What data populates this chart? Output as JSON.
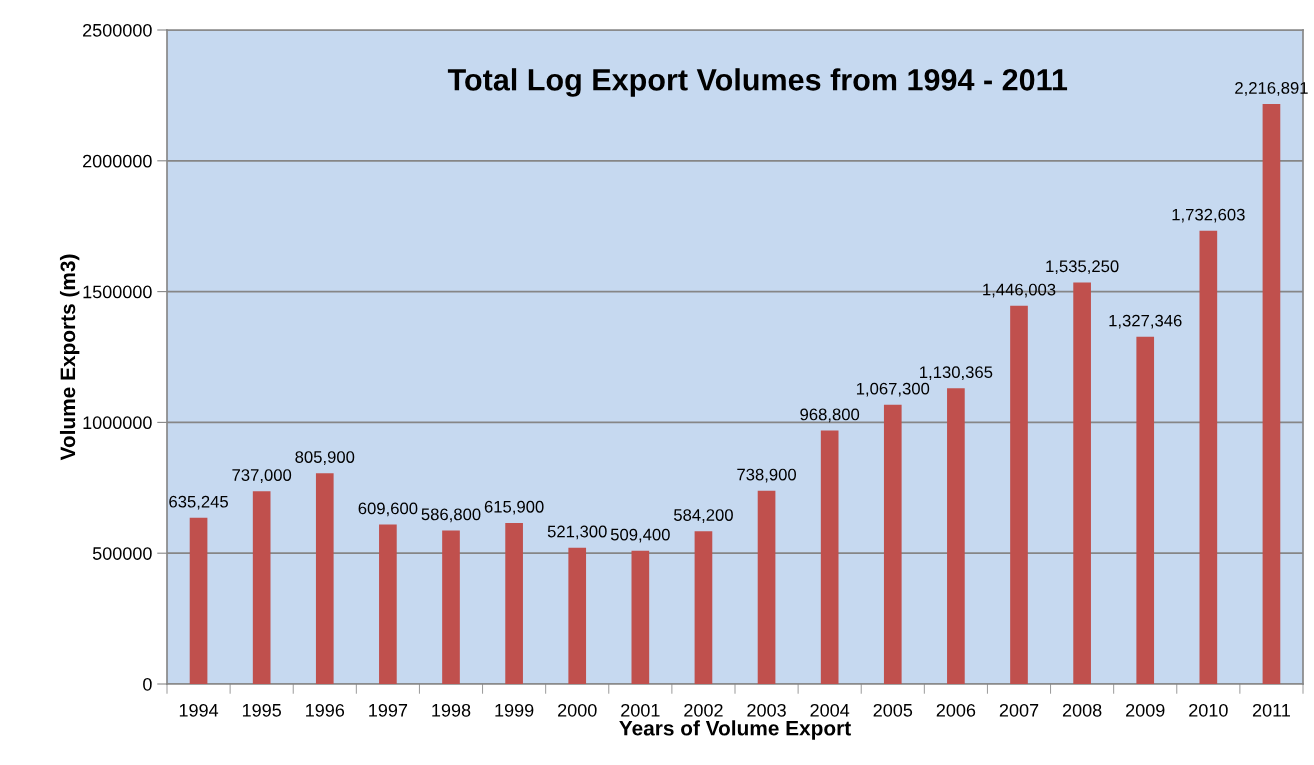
{
  "chart_data": {
    "type": "bar",
    "title": "Total Log Export Volumes from 1994 - 2011",
    "xlabel": "Years of Volume Export",
    "ylabel": "Volume Exports (m3)",
    "categories": [
      "1994",
      "1995",
      "1996",
      "1997",
      "1998",
      "1999",
      "2000",
      "2001",
      "2002",
      "2003",
      "2004",
      "2005",
      "2006",
      "2007",
      "2008",
      "2009",
      "2010",
      "2011"
    ],
    "values": [
      635245,
      737000,
      805900,
      609600,
      586800,
      615900,
      521300,
      509400,
      584200,
      738900,
      968800,
      1067300,
      1130365,
      1446003,
      1535250,
      1327346,
      1732603,
      2216891
    ],
    "value_labels": [
      "635,245",
      "737,000",
      "805,900",
      "609,600",
      "586,800",
      "615,900",
      "521,300",
      "509,400",
      "584,200",
      "738,900",
      "968,800",
      "1,067,300",
      "1,130,365",
      "1,446,003",
      "1,535,250",
      "1,327,346",
      "1,732,603",
      "2,216,891"
    ],
    "color": "#c0504d",
    "ylim": [
      0,
      2500000
    ],
    "yticks": [
      0,
      500000,
      1000000,
      1500000,
      2000000,
      2500000
    ],
    "grid": "y"
  }
}
